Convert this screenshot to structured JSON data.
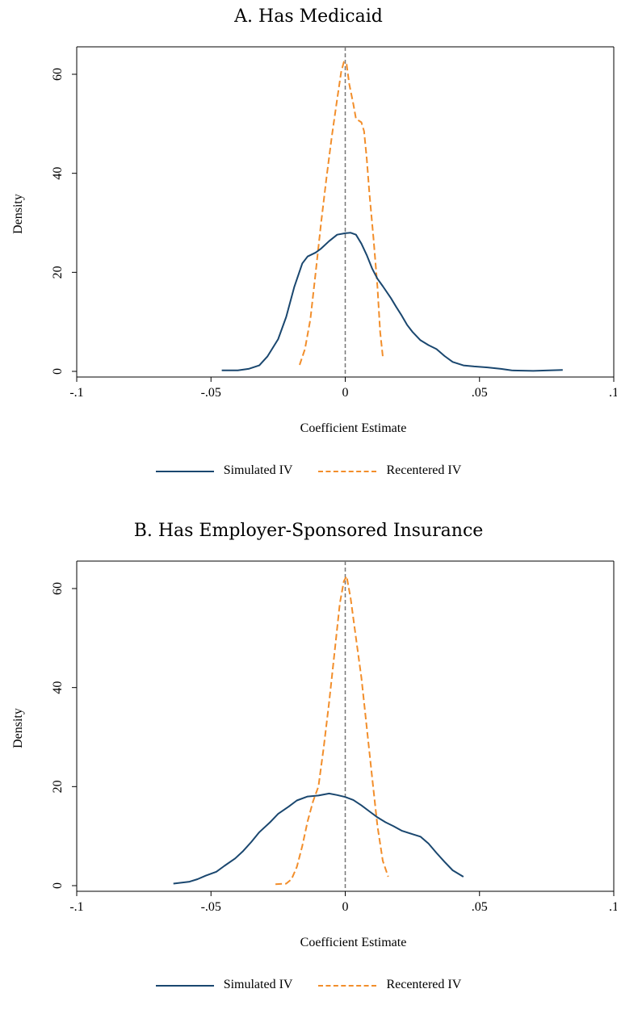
{
  "chart_data": [
    {
      "type": "line",
      "title": "A. Has Medicaid",
      "xlabel": "Coefficient Estimate",
      "ylabel": "Density",
      "xlim": [
        -0.1,
        0.1
      ],
      "ylim": [
        0,
        60
      ],
      "x_ticks": [
        -0.1,
        -0.05,
        0,
        0.05,
        0.1
      ],
      "x_tick_labels": [
        "-.1",
        "-.05",
        "0",
        ".05",
        ".1"
      ],
      "y_ticks": [
        0,
        20,
        40,
        60
      ],
      "y_tick_labels": [
        "0",
        "20",
        "40",
        "60"
      ],
      "reference_line": {
        "x": 0,
        "style": "dashed",
        "color": "#777777"
      },
      "legend_position": "bottom",
      "series": [
        {
          "name": "Simulated IV",
          "color": "#1a476f",
          "style": "solid",
          "points": [
            [
              -0.046,
              0.2
            ],
            [
              -0.04,
              0.2
            ],
            [
              -0.036,
              0.5
            ],
            [
              -0.032,
              1.2
            ],
            [
              -0.029,
              3
            ],
            [
              -0.025,
              6.5
            ],
            [
              -0.022,
              11
            ],
            [
              -0.019,
              17
            ],
            [
              -0.016,
              21.8
            ],
            [
              -0.014,
              23.2
            ],
            [
              -0.011,
              24
            ],
            [
              -0.009,
              24.8
            ],
            [
              -0.006,
              26.3
            ],
            [
              -0.003,
              27.6
            ],
            [
              0,
              27.9
            ],
            [
              0.002,
              28
            ],
            [
              0.004,
              27.6
            ],
            [
              0.006,
              25.8
            ],
            [
              0.008,
              23.5
            ],
            [
              0.01,
              20.8
            ],
            [
              0.012,
              18.7
            ],
            [
              0.014,
              17.2
            ],
            [
              0.017,
              14.8
            ],
            [
              0.019,
              13
            ],
            [
              0.021,
              11.3
            ],
            [
              0.023,
              9.4
            ],
            [
              0.025,
              8
            ],
            [
              0.028,
              6.3
            ],
            [
              0.031,
              5.3
            ],
            [
              0.034,
              4.5
            ],
            [
              0.037,
              3.1
            ],
            [
              0.04,
              1.9
            ],
            [
              0.044,
              1.2
            ],
            [
              0.048,
              1
            ],
            [
              0.053,
              0.8
            ],
            [
              0.058,
              0.5
            ],
            [
              0.062,
              0.2
            ],
            [
              0.07,
              0.1
            ],
            [
              0.076,
              0.2
            ],
            [
              0.081,
              0.3
            ]
          ]
        },
        {
          "name": "Recentered IV",
          "color": "#f28e2b",
          "style": "dashed",
          "points": [
            [
              -0.017,
              1.3
            ],
            [
              -0.015,
              4.5
            ],
            [
              -0.013,
              10.5
            ],
            [
              -0.011,
              20
            ],
            [
              -0.009,
              30
            ],
            [
              -0.007,
              39
            ],
            [
              -0.005,
              47.5
            ],
            [
              -0.003,
              55
            ],
            [
              -0.0015,
              60.5
            ],
            [
              -0.0005,
              62.5
            ],
            [
              0.0005,
              62
            ],
            [
              0.0015,
              58
            ],
            [
              0.003,
              54
            ],
            [
              0.004,
              51
            ],
            [
              0.006,
              50.3
            ],
            [
              0.007,
              48.5
            ],
            [
              0.008,
              43
            ],
            [
              0.009,
              36
            ],
            [
              0.0105,
              27
            ],
            [
              0.012,
              17
            ],
            [
              0.013,
              8
            ],
            [
              0.014,
              3
            ]
          ]
        }
      ]
    },
    {
      "type": "line",
      "title": "B. Has Employer-Sponsored Insurance",
      "xlabel": "Coefficient Estimate",
      "ylabel": "Density",
      "xlim": [
        -0.1,
        0.1
      ],
      "ylim": [
        0,
        60
      ],
      "x_ticks": [
        -0.1,
        -0.05,
        0,
        0.05,
        0.1
      ],
      "x_tick_labels": [
        "-.1",
        "-.05",
        "0",
        ".05",
        ".1"
      ],
      "y_ticks": [
        0,
        20,
        40,
        60
      ],
      "y_tick_labels": [
        "0",
        "20",
        "40",
        "60"
      ],
      "reference_line": {
        "x": 0,
        "style": "dashed",
        "color": "#777777"
      },
      "legend_position": "bottom",
      "series": [
        {
          "name": "Simulated IV",
          "color": "#1a476f",
          "style": "solid",
          "points": [
            [
              -0.064,
              0.4
            ],
            [
              -0.058,
              0.8
            ],
            [
              -0.055,
              1.3
            ],
            [
              -0.052,
              2
            ],
            [
              -0.048,
              2.8
            ],
            [
              -0.045,
              4
            ],
            [
              -0.041,
              5.5
            ],
            [
              -0.038,
              7
            ],
            [
              -0.035,
              8.8
            ],
            [
              -0.032,
              10.8
            ],
            [
              -0.028,
              12.8
            ],
            [
              -0.025,
              14.5
            ],
            [
              -0.021,
              16
            ],
            [
              -0.018,
              17.2
            ],
            [
              -0.014,
              18
            ],
            [
              -0.01,
              18.2
            ],
            [
              -0.006,
              18.6
            ],
            [
              -0.003,
              18.3
            ],
            [
              0,
              17.9
            ],
            [
              0.003,
              17.3
            ],
            [
              0.006,
              16.2
            ],
            [
              0.009,
              15
            ],
            [
              0.012,
              13.8
            ],
            [
              0.015,
              12.8
            ],
            [
              0.018,
              12
            ],
            [
              0.021,
              11.1
            ],
            [
              0.025,
              10.4
            ],
            [
              0.028,
              9.9
            ],
            [
              0.031,
              8.5
            ],
            [
              0.034,
              6.6
            ],
            [
              0.037,
              4.8
            ],
            [
              0.04,
              3.1
            ],
            [
              0.044,
              1.8
            ]
          ]
        },
        {
          "name": "Recentered IV",
          "color": "#f28e2b",
          "style": "dashed",
          "points": [
            [
              -0.026,
              0.3
            ],
            [
              -0.022,
              0.4
            ],
            [
              -0.02,
              1.3
            ],
            [
              -0.018,
              3.8
            ],
            [
              -0.016,
              8
            ],
            [
              -0.014,
              13
            ],
            [
              -0.012,
              17
            ],
            [
              -0.01,
              20
            ],
            [
              -0.008,
              28
            ],
            [
              -0.006,
              37
            ],
            [
              -0.004,
              47
            ],
            [
              -0.002,
              57
            ],
            [
              -0.0005,
              61.5
            ],
            [
              0.0005,
              62.5
            ],
            [
              0.002,
              58
            ],
            [
              0.004,
              50
            ],
            [
              0.006,
              42
            ],
            [
              0.008,
              32
            ],
            [
              0.01,
              22
            ],
            [
              0.012,
              12
            ],
            [
              0.014,
              5
            ],
            [
              0.016,
              1.8
            ]
          ]
        }
      ]
    }
  ]
}
